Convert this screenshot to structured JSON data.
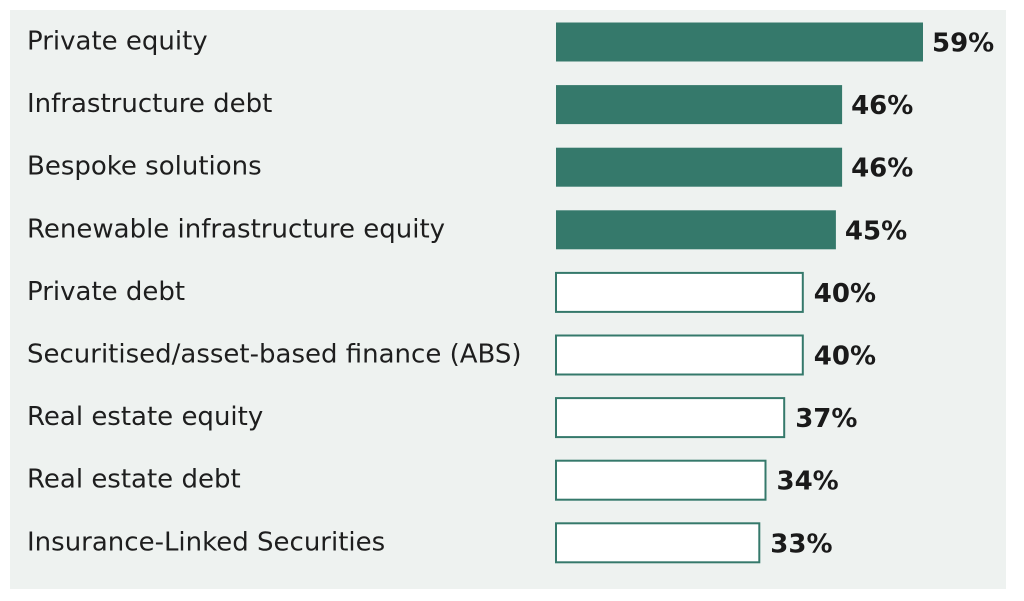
{
  "chart_data": {
    "type": "bar",
    "orientation": "horizontal",
    "categories": [
      "Private equity",
      "Infrastructure debt",
      "Bespoke solutions",
      "Renewable infrastructure equity",
      "Private debt",
      "Securitised/asset-based finance (ABS)",
      "Real estate equity",
      "Real estate debt",
      "Insurance-Linked Securities"
    ],
    "values": [
      59,
      46,
      46,
      45,
      40,
      40,
      37,
      34,
      33
    ],
    "value_labels": [
      "59%",
      "46%",
      "46%",
      "45%",
      "40%",
      "40%",
      "37%",
      "34%",
      "33%"
    ],
    "highlighted": [
      true,
      true,
      true,
      true,
      false,
      false,
      false,
      false,
      false
    ],
    "title": "",
    "xlabel": "",
    "ylabel": "",
    "xlim": [
      0,
      59
    ],
    "grid": false,
    "legend": "none",
    "colors": {
      "highlight_fill": "#35796b",
      "outline_stroke": "#35796b",
      "outline_fill": "#ffffff",
      "panel_background": "#eef2f0"
    }
  }
}
